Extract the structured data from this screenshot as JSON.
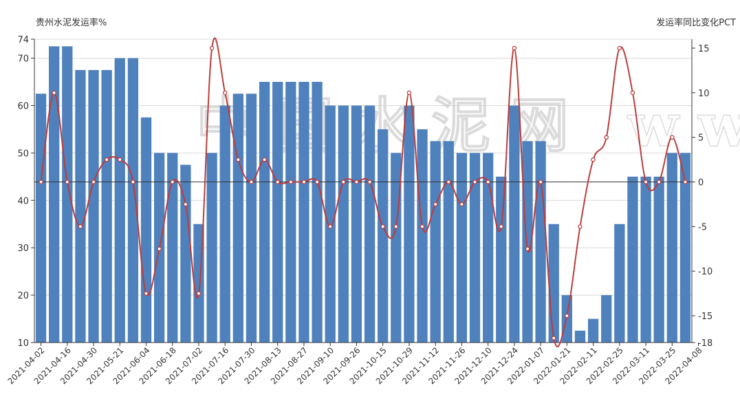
{
  "chart_data": {
    "type": "bar",
    "left_axis_title": "贵州水泥发运率%",
    "right_axis_title": "发运率同比变化PCT",
    "watermark": "中国水泥网 www.Ccement.com",
    "left_ylim": [
      10,
      74
    ],
    "left_ticks": [
      10,
      20,
      30,
      40,
      50,
      60,
      70,
      74
    ],
    "right_ylim": [
      -18,
      16
    ],
    "right_ticks": [
      -18,
      -15,
      -10,
      -5,
      0,
      5,
      10,
      15
    ],
    "grid": true,
    "x_tick_labels": [
      "2021-04-02",
      "2021-04-16",
      "2021-04-30",
      "2021-05-21",
      "2021-06-04",
      "2021-06-18",
      "2021-07-02",
      "2021-07-16",
      "2021-07-30",
      "2021-08-13",
      "2021-08-27",
      "2021-09-10",
      "2021-09-26",
      "2021-10-15",
      "2021-10-29",
      "2021-11-12",
      "2021-11-26",
      "2021-12-10",
      "2021-12-24",
      "2022-01-07",
      "2022-01-21",
      "2022-02-11",
      "2022-02-25",
      "2022-03-11",
      "2022-03-25",
      "2022-04-08"
    ],
    "bar_values": [
      62.5,
      72.5,
      72.5,
      67.5,
      67.5,
      67.5,
      70,
      70,
      57.5,
      50,
      50,
      47.5,
      35,
      50,
      60,
      62.5,
      62.5,
      65,
      65,
      65,
      65,
      65,
      60,
      60,
      60,
      60,
      55,
      50,
      60,
      55,
      52.5,
      52.5,
      50,
      50,
      50,
      45,
      60,
      52.5,
      52.5,
      35,
      20,
      12.5,
      15,
      20,
      35,
      45,
      45,
      45,
      50,
      50
    ],
    "line_values": [
      0,
      10,
      0,
      -5,
      0,
      2.5,
      2.5,
      0,
      -12.5,
      -7.5,
      0,
      -2.5,
      -12.5,
      15,
      10,
      2.5,
      0,
      2.5,
      0,
      0,
      0,
      0,
      -5,
      0,
      0,
      0,
      -5,
      -5,
      10,
      -5,
      -2.5,
      0,
      -2.5,
      0,
      0,
      -5,
      15,
      -7.5,
      0,
      -17.5,
      -15,
      -5,
      2.5,
      5,
      15,
      10,
      0,
      0,
      5,
      0
    ],
    "colors": {
      "bar": "#4f81bd",
      "line": "#bc3c3c",
      "marker_fill": "#ffffff"
    }
  }
}
